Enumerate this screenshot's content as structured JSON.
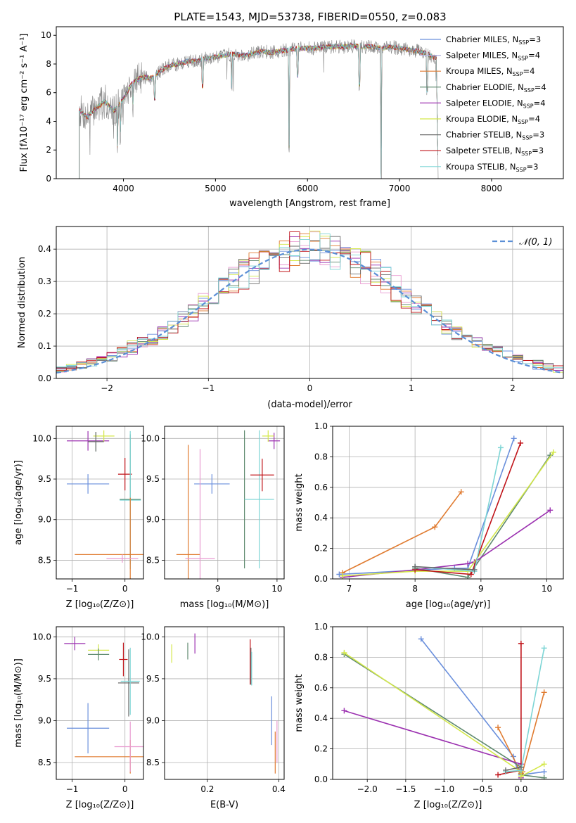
{
  "title": "PLATE=1543, MJD=53738, FIBERID=0550, z=0.083",
  "colors": {
    "chabrier_miles": "#6a8fdc",
    "salpeter_miles": "#b3b3e0",
    "kroupa_miles": "#e07b30",
    "chabrier_elodie": "#5f8a6f",
    "salpeter_elodie": "#9b30b0",
    "kroupa_elodie": "#d4e84a",
    "chabrier_stelib": "#6b6b6b",
    "salpeter_stelib": "#c0141a",
    "kroupa_stelib": "#7dd5d5",
    "salpeter_pink": "#e89ad0",
    "normal_curve": "#5b8fd6",
    "data_spectrum": "#888888"
  },
  "chart_data": [
    {
      "id": "spectrum",
      "type": "line",
      "title": "PLATE=1543, MJD=53738, FIBERID=0550, z=0.083",
      "xlabel": "wavelength [Angstrom, rest frame]",
      "ylabel": "Flux [fλ10⁻¹⁷ erg cm⁻² s⁻¹ A⁻¹]",
      "xlim": [
        3270,
        8780
      ],
      "ylim": [
        0,
        10.6
      ],
      "xticks": [
        4000,
        5000,
        6000,
        7000,
        8000
      ],
      "yticks": [
        0,
        2,
        4,
        6,
        8,
        10
      ],
      "grid": false,
      "legend_position": "right",
      "legend": [
        {
          "label": "Chabrier MILES, N",
          "sub": "SSP",
          "suffix": "=3",
          "color": "#6a8fdc"
        },
        {
          "label": "Salpeter MILES, N",
          "sub": "SSP",
          "suffix": "=4",
          "color": "#b3b3e0"
        },
        {
          "label": "Kroupa MILES, N",
          "sub": "SSP",
          "suffix": "=4",
          "color": "#e07b30"
        },
        {
          "label": "Chabrier ELODIE, N",
          "sub": "SSP",
          "suffix": "=4",
          "color": "#5f8a6f"
        },
        {
          "label": "Salpeter ELODIE, N",
          "sub": "SSP",
          "suffix": "=4",
          "color": "#9b30b0"
        },
        {
          "label": "Kroupa ELODIE, N",
          "sub": "SSP",
          "suffix": "=4",
          "color": "#d4e84a"
        },
        {
          "label": "Chabrier STELIB, N",
          "sub": "SSP",
          "suffix": "=3",
          "color": "#6b6b6b"
        },
        {
          "label": "Salpeter STELIB, N",
          "sub": "SSP",
          "suffix": "=3",
          "color": "#c0141a"
        },
        {
          "label": "Kroupa STELIB, N",
          "sub": "SSP",
          "suffix": "=3",
          "color": "#7dd5d5"
        }
      ],
      "continuum": [
        [
          3520,
          4.8
        ],
        [
          3600,
          4.3
        ],
        [
          3700,
          4.9
        ],
        [
          3800,
          5.4
        ],
        [
          3900,
          4.7
        ],
        [
          4000,
          5.6
        ],
        [
          4100,
          6.7
        ],
        [
          4200,
          7.1
        ],
        [
          4300,
          7.0
        ],
        [
          4400,
          7.5
        ],
        [
          4500,
          7.9
        ],
        [
          4600,
          8.0
        ],
        [
          4700,
          8.2
        ],
        [
          4800,
          8.2
        ],
        [
          4900,
          8.4
        ],
        [
          5000,
          8.5
        ],
        [
          5100,
          8.6
        ],
        [
          5200,
          8.7
        ],
        [
          5300,
          8.6
        ],
        [
          5400,
          8.7
        ],
        [
          5500,
          8.9
        ],
        [
          5600,
          8.8
        ],
        [
          5700,
          8.9
        ],
        [
          5800,
          9.0
        ],
        [
          5900,
          9.1
        ],
        [
          6000,
          9.1
        ],
        [
          6100,
          9.1
        ],
        [
          6200,
          9.2
        ],
        [
          6300,
          9.2
        ],
        [
          6400,
          9.2
        ],
        [
          6500,
          9.3
        ],
        [
          6600,
          9.2
        ],
        [
          6700,
          9.2
        ],
        [
          6800,
          9.1
        ],
        [
          6900,
          9.2
        ],
        [
          7000,
          9.1
        ],
        [
          7100,
          9.0
        ],
        [
          7200,
          8.9
        ],
        [
          7300,
          8.7
        ],
        [
          7400,
          8.4
        ]
      ],
      "absorption": [
        [
          3934,
          2.3
        ],
        [
          3968,
          3.2
        ],
        [
          4102,
          5.3
        ],
        [
          4340,
          5.6
        ],
        [
          4861,
          6.5
        ],
        [
          5175,
          6.5
        ],
        [
          5893,
          7.2
        ],
        [
          5800,
          2.3
        ],
        [
          6563,
          6.6
        ],
        [
          6800,
          0
        ],
        [
          7300,
          6.2
        ]
      ]
    },
    {
      "id": "residuals",
      "type": "histogram",
      "xlabel": "(data-model)/error",
      "ylabel": "Normed distribution",
      "xlim": [
        -2.5,
        2.5
      ],
      "ylim": [
        0,
        0.47
      ],
      "xticks": [
        -2,
        -1,
        0,
        1,
        2
      ],
      "yticks": [
        0.0,
        0.1,
        0.2,
        0.3,
        0.4
      ],
      "grid": true,
      "legend_position": "top-right",
      "legend_label": "𝒩(0, 1)",
      "reference_curve": {
        "type": "normal",
        "mean": 0,
        "sigma": 1,
        "style": "dashed"
      }
    },
    {
      "id": "age-vs-z",
      "type": "scatter",
      "xlabel": "Z [log₁₀(Z/Z⊙)]",
      "ylabel": "age  [log₁₀(age/yr)]",
      "xlim": [
        -1.3,
        0.35
      ],
      "ylim": [
        8.27,
        10.15
      ],
      "xticks": [
        -1,
        0
      ],
      "yticks": [
        8.5,
        9.0,
        9.5,
        10.0
      ],
      "grid": true,
      "points": [
        {
          "x": -0.7,
          "y": 9.44,
          "xerr": 0.4,
          "yerr": 0.12,
          "color": "#6a8fdc"
        },
        {
          "x": -0.7,
          "y": 9.97,
          "xerr": 0.4,
          "yerr": 0.12,
          "color": "#9b30b0"
        },
        {
          "x": -0.4,
          "y": 10.03,
          "xerr": 0.2,
          "yerr": 0.07,
          "color": "#d4e84a"
        },
        {
          "x": -0.55,
          "y": 9.96,
          "xerr": 0.15,
          "yerr": 0.12,
          "color": "#5f8a6f"
        },
        {
          "x": -0.55,
          "y": 9.96,
          "xerr": 0.15,
          "yerr": 0.12,
          "color": "#6b6b6b"
        },
        {
          "x": 0.0,
          "y": 9.56,
          "xerr": 0.13,
          "yerr": 0.2,
          "color": "#c0141a"
        },
        {
          "x": 0.1,
          "y": 9.25,
          "xerr": 0.2,
          "yerr": 0.8,
          "color": "#5f8a6f"
        },
        {
          "x": 0.1,
          "y": 9.24,
          "xerr": 0.2,
          "yerr": 0.85,
          "color": "#7dd5d5"
        },
        {
          "x": 0.1,
          "y": 8.57,
          "xerr": 1.05,
          "yerr": 0.7,
          "color": "#e07b30"
        },
        {
          "x": -0.05,
          "y": 8.52,
          "xerr": 0.3,
          "yerr": 0.05,
          "color": "#e89ad0"
        }
      ]
    },
    {
      "id": "age-vs-mass",
      "type": "scatter",
      "xlabel": "mass [log₁₀(M/M⊙)]",
      "ylabel": "",
      "xlim": [
        8.1,
        10.12
      ],
      "ylim": [
        8.27,
        10.15
      ],
      "xticks": [
        9,
        10
      ],
      "yticks": [
        8.5,
        9.0,
        9.5,
        10.0
      ],
      "grid": true,
      "points": [
        {
          "x": 8.9,
          "y": 9.44,
          "xerr": 0.3,
          "yerr": 0.12,
          "color": "#6a8fdc"
        },
        {
          "x": 9.95,
          "y": 9.97,
          "xerr": 0.1,
          "yerr": 0.1,
          "color": "#9b30b0"
        },
        {
          "x": 9.85,
          "y": 10.03,
          "xerr": 0.1,
          "yerr": 0.07,
          "color": "#d4e84a"
        },
        {
          "x": 9.45,
          "y": 9.25,
          "xerr": 0.0,
          "yerr": 0.85,
          "color": "#5f8a6f"
        },
        {
          "x": 9.7,
          "y": 9.25,
          "xerr": 0.25,
          "yerr": 0.85,
          "color": "#7dd5d5"
        },
        {
          "x": 9.75,
          "y": 9.55,
          "xerr": 0.2,
          "yerr": 0.2,
          "color": "#c0141a"
        },
        {
          "x": 8.5,
          "y": 8.57,
          "xerr": 0.2,
          "yerr": 1.35,
          "color": "#e07b30"
        },
        {
          "x": 8.7,
          "y": 8.52,
          "xerr": 0.25,
          "yerr": 1.35,
          "color": "#e89ad0"
        }
      ]
    },
    {
      "id": "mass-weight-vs-age",
      "type": "line",
      "xlabel": "age  [log₁₀(age/yr)]",
      "ylabel": "mass weight",
      "xlim": [
        6.75,
        10.25
      ],
      "ylim": [
        0,
        1.0
      ],
      "xticks": [
        7,
        8,
        9,
        10
      ],
      "yticks": [
        0.0,
        0.2,
        0.4,
        0.6,
        0.8,
        1.0
      ],
      "grid": true,
      "series": [
        {
          "color": "#6a8fdc",
          "x": [
            6.85,
            8.6,
            8.8,
            9.5
          ],
          "y": [
            0.03,
            0.07,
            0.07,
            0.92
          ]
        },
        {
          "color": "#e07b30",
          "x": [
            6.9,
            8.3,
            8.7
          ],
          "y": [
            0.04,
            0.34,
            0.57
          ]
        },
        {
          "color": "#5f8a6f",
          "x": [
            8.0,
            8.8,
            10.05
          ],
          "y": [
            0.07,
            0.01,
            0.81
          ]
        },
        {
          "color": "#9b30b0",
          "x": [
            6.9,
            8.0,
            8.8,
            8.9,
            10.05
          ],
          "y": [
            0.01,
            0.06,
            0.1,
            0.11,
            0.45
          ]
        },
        {
          "color": "#d4e84a",
          "x": [
            6.9,
            8.0,
            8.8,
            10.1
          ],
          "y": [
            0.02,
            0.05,
            0.05,
            0.83
          ]
        },
        {
          "color": "#c0141a",
          "x": [
            8.0,
            8.85,
            9.6
          ],
          "y": [
            0.06,
            0.03,
            0.89
          ]
        },
        {
          "color": "#7dd5d5",
          "x": [
            8.0,
            8.9,
            9.3
          ],
          "y": [
            0.08,
            0.05,
            0.86
          ]
        },
        {
          "color": "#6b6b6b",
          "x": [
            8.0,
            8.9
          ],
          "y": [
            0.08,
            0.06
          ]
        }
      ]
    },
    {
      "id": "mass-vs-z",
      "type": "scatter",
      "xlabel": "Z [log₁₀(Z/Z⊙)]",
      "ylabel": "mass [log₁₀(M/M⊙)]",
      "xlim": [
        -1.3,
        0.35
      ],
      "ylim": [
        8.3,
        10.12
      ],
      "xticks": [
        -1,
        0
      ],
      "yticks": [
        8.5,
        9.0,
        9.5,
        10.0
      ],
      "grid": true,
      "points": [
        {
          "x": -0.7,
          "y": 8.91,
          "xerr": 0.4,
          "yerr": 0.3,
          "color": "#6a8fdc"
        },
        {
          "x": -0.95,
          "y": 9.92,
          "xerr": 0.2,
          "yerr": 0.08,
          "color": "#9b30b0"
        },
        {
          "x": -0.5,
          "y": 9.84,
          "xerr": 0.2,
          "yerr": 0.07,
          "color": "#d4e84a"
        },
        {
          "x": -0.5,
          "y": 9.79,
          "xerr": 0.2,
          "yerr": 0.07,
          "color": "#5f8a6f"
        },
        {
          "x": -0.03,
          "y": 9.73,
          "xerr": 0.08,
          "yerr": 0.2,
          "color": "#c0141a"
        },
        {
          "x": 0.07,
          "y": 9.45,
          "xerr": 0.2,
          "yerr": 0.4,
          "color": "#6b6b6b"
        },
        {
          "x": 0.1,
          "y": 9.47,
          "xerr": 0.18,
          "yerr": 0.4,
          "color": "#7dd5d5"
        },
        {
          "x": 0.1,
          "y": 8.57,
          "xerr": 1.05,
          "yerr": 0.2,
          "color": "#e07b30"
        },
        {
          "x": 0.1,
          "y": 8.69,
          "xerr": 0.3,
          "yerr": 0.3,
          "color": "#e89ad0"
        }
      ]
    },
    {
      "id": "mass-vs-ebv",
      "type": "scatter",
      "xlabel": "E(B-V)",
      "ylabel": "",
      "xlim": [
        0.08,
        0.415
      ],
      "ylim": [
        8.3,
        10.12
      ],
      "xticks": [
        0.2,
        0.4
      ],
      "yticks": [
        8.5,
        9.0,
        9.5,
        10.0
      ],
      "grid": true,
      "points": [
        {
          "x": 0.1,
          "y": 9.8,
          "xerr": 0,
          "yerr": 0.11,
          "color": "#d4e84a"
        },
        {
          "x": 0.145,
          "y": 9.83,
          "xerr": 0,
          "yerr": 0.1,
          "color": "#5f8a6f"
        },
        {
          "x": 0.165,
          "y": 9.92,
          "xerr": 0,
          "yerr": 0.12,
          "color": "#9b30b0"
        },
        {
          "x": 0.32,
          "y": 9.7,
          "xerr": 0,
          "yerr": 0.27,
          "color": "#c0141a"
        },
        {
          "x": 0.322,
          "y": 9.65,
          "xerr": 0,
          "yerr": 0.22,
          "color": "#6b6b6b"
        },
        {
          "x": 0.324,
          "y": 9.62,
          "xerr": 0,
          "yerr": 0.2,
          "color": "#7dd5d5"
        },
        {
          "x": 0.38,
          "y": 9.0,
          "xerr": 0,
          "yerr": 0.29,
          "color": "#6a8fdc"
        },
        {
          "x": 0.39,
          "y": 8.62,
          "xerr": 0,
          "yerr": 0.25,
          "color": "#e07b30"
        },
        {
          "x": 0.395,
          "y": 8.75,
          "xerr": 0,
          "yerr": 0.25,
          "color": "#e89ad0"
        }
      ]
    },
    {
      "id": "mass-weight-vs-z",
      "type": "line",
      "xlabel": "Z [log₁₀(Z/Z⊙)]",
      "ylabel": "mass weight",
      "xlim": [
        -2.45,
        0.55
      ],
      "ylim": [
        0,
        1.0
      ],
      "xticks": [
        -2.0,
        -1.5,
        -1.0,
        -0.5,
        0.0
      ],
      "yticks": [
        0.0,
        0.2,
        0.4,
        0.6,
        0.8,
        1.0
      ],
      "grid": true,
      "series": [
        {
          "color": "#6a8fdc",
          "x": [
            -1.3,
            -0.1,
            -0.05,
            0.0,
            0.3
          ],
          "y": [
            0.92,
            0.15,
            0.07,
            0.03,
            0.05
          ]
        },
        {
          "color": "#e07b30",
          "x": [
            -0.3,
            0.0,
            0.02,
            0.3
          ],
          "y": [
            0.34,
            0.04,
            0.05,
            0.57
          ]
        },
        {
          "color": "#5f8a6f",
          "x": [
            -2.3,
            0.0,
            0.0,
            0.3
          ],
          "y": [
            0.82,
            0.08,
            0.03,
            0.01
          ]
        },
        {
          "color": "#9b30b0",
          "x": [
            -2.3,
            0.0,
            0.0,
            0.0
          ],
          "y": [
            0.45,
            0.1,
            0.01,
            0.06
          ]
        },
        {
          "color": "#d4e84a",
          "x": [
            -2.3,
            0.0,
            0.0,
            0.3
          ],
          "y": [
            0.83,
            0.05,
            0.02,
            0.1
          ]
        },
        {
          "color": "#c0141a",
          "x": [
            -0.3,
            0.0,
            0.0
          ],
          "y": [
            0.03,
            0.06,
            0.89
          ]
        },
        {
          "color": "#7dd5d5",
          "x": [
            -0.2,
            0.0,
            0.3
          ],
          "y": [
            0.05,
            0.06,
            0.86
          ]
        },
        {
          "color": "#6b6b6b",
          "x": [
            -0.2,
            0.0
          ],
          "y": [
            0.06,
            0.08
          ]
        }
      ]
    }
  ]
}
